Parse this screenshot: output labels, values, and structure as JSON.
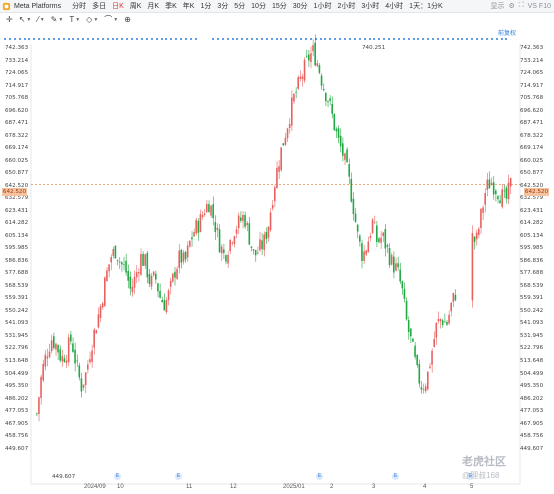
{
  "header": {
    "title": "Meta Platforms",
    "timeframes": [
      "分时",
      "多日",
      "日K",
      "周K",
      "月K",
      "季K",
      "年K",
      "1分",
      "3分",
      "5分",
      "10分",
      "15分",
      "30分",
      "1小时",
      "2小时",
      "3小时",
      "4小时",
      "1天：1分K"
    ],
    "active_timeframe": "日K",
    "display_label": "显示",
    "toolbar_right_label": "VS F10"
  },
  "toolbar": {
    "crosshair_icon": "crosshair-icon",
    "cursor_icon": "cursor-icon",
    "line_icon": "line-icon",
    "pen_icon": "pen-icon",
    "text_icon": "text-icon",
    "shape_icon": "shape-icon",
    "measure_icon": "measure-icon",
    "zoom_icon": "zoom-icon"
  },
  "right_badge": "前复权",
  "price_axis": [
    "742.363",
    "733.214",
    "724.065",
    "714.917",
    "705.768",
    "696.620",
    "687.471",
    "678.322",
    "669.174",
    "660.025",
    "650.877",
    "642.520",
    "632.579",
    "623.431",
    "614.282",
    "605.134",
    "595.985",
    "586.836",
    "577.688",
    "568.539",
    "559.391",
    "550.242",
    "541.093",
    "531.945",
    "522.796",
    "513.648",
    "504.499",
    "495.350",
    "486.202",
    "477.053",
    "467.905",
    "458.756",
    "449.607"
  ],
  "current_price": "642.520",
  "high_label": "740.251",
  "low_label": "449.607",
  "x_labels": [
    "2024/09",
    "10",
    "11",
    "12",
    "2025/01",
    "2",
    "3",
    "4",
    "5"
  ],
  "watermark": "老虎社区",
  "watermark_user": "@理叔168",
  "colors": {
    "up": "#e8605f",
    "down": "#21a843",
    "price_line": "#f08a4b",
    "accent": "#2f7de1"
  },
  "chart_data": {
    "type": "candlestick",
    "title": "Meta Platforms",
    "x_start": "2024/08",
    "x_end": "2025/05",
    "ylim": [
      449.607,
      746
    ],
    "current_price": 642.52,
    "high": 740.251,
    "low": 449.607,
    "close_series": [
      475,
      505,
      520,
      530,
      525,
      515,
      520,
      530,
      510,
      495,
      505,
      525,
      540,
      555,
      575,
      590,
      595,
      585,
      580,
      565,
      575,
      590,
      585,
      570,
      575,
      560,
      555,
      565,
      580,
      590,
      585,
      600,
      610,
      615,
      625,
      630,
      615,
      600,
      590,
      600,
      610,
      615,
      620,
      605,
      590,
      595,
      600,
      615,
      640,
      660,
      675,
      690,
      705,
      715,
      725,
      735,
      740,
      730,
      715,
      705,
      690,
      675,
      665,
      650,
      630,
      605,
      590,
      600,
      615,
      600,
      605,
      595,
      585,
      580,
      565,
      540,
      525,
      505,
      495,
      500,
      520,
      540,
      545,
      540,
      555,
      565,
      590,
      600,
      605,
      600,
      620,
      640,
      645,
      640,
      635,
      630,
      642.52
    ]
  }
}
